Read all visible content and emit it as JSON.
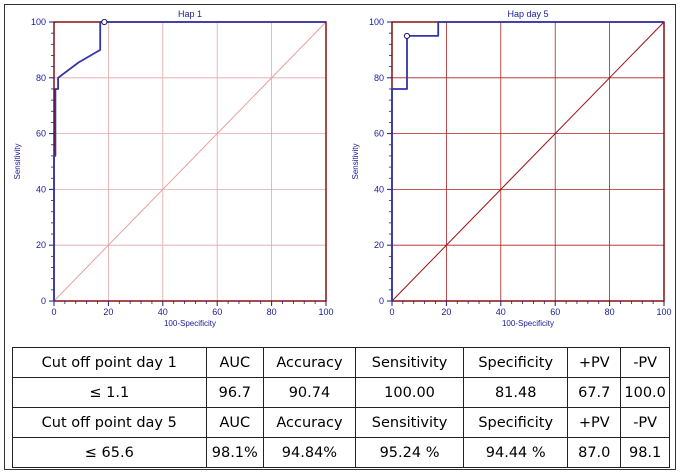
{
  "chart_data": [
    {
      "type": "line",
      "title": "Hap 1",
      "xlabel": "100-Specificity",
      "ylabel": "Sensitivity",
      "xlim": [
        0,
        100
      ],
      "ylim": [
        0,
        100
      ],
      "xticks": [
        0,
        20,
        40,
        60,
        80,
        100
      ],
      "yticks": [
        0,
        20,
        40,
        60,
        80,
        100
      ],
      "grid": true,
      "roc_curve": {
        "x": [
          0,
          0,
          0.5,
          0.5,
          1.5,
          1.5,
          9,
          17,
          17,
          18.5,
          100
        ],
        "y": [
          0,
          52,
          52,
          76,
          76,
          80,
          85.5,
          90,
          100,
          100,
          100
        ]
      },
      "diagonal": {
        "x": [
          0,
          100
        ],
        "y": [
          0,
          100
        ]
      },
      "cutoff_point": {
        "x": 18.5,
        "y": 100
      },
      "colors": {
        "curve": "#3333aa",
        "diagonal": "#e8a0a0",
        "grid": "#e0a8a8",
        "frame": "#800000",
        "text": "#1a1a99"
      }
    },
    {
      "type": "line",
      "title": "Hap day 5",
      "xlabel": "100-Specificity",
      "ylabel": "Sensitivity",
      "xlim": [
        0,
        100
      ],
      "ylim": [
        0,
        100
      ],
      "xticks": [
        0,
        20,
        40,
        60,
        80,
        100
      ],
      "yticks": [
        0,
        20,
        40,
        60,
        80,
        100
      ],
      "grid": true,
      "roc_curve": {
        "x": [
          0,
          0,
          5.5,
          5.5,
          17,
          17,
          100
        ],
        "y": [
          0,
          76,
          76,
          95,
          95,
          100,
          100
        ]
      },
      "diagonal": {
        "x": [
          0,
          100
        ],
        "y": [
          0,
          100
        ]
      },
      "cutoff_point": {
        "x": 5.5,
        "y": 95
      },
      "colors": {
        "curve": "#3333aa",
        "diagonal": "#a01010",
        "grid": "#b02020",
        "frame": "#800000",
        "text": "#1a1a99"
      }
    }
  ],
  "table": {
    "rows": [
      [
        "Cut off point day 1",
        "AUC",
        "Accuracy",
        "Sensitivity",
        "Specificity",
        "+PV",
        "-PV"
      ],
      [
        "≤ 1.1",
        "96.7",
        "90.74",
        "100.00",
        "81.48",
        "67.7",
        "100.0"
      ],
      [
        "Cut off point day 5",
        "AUC",
        "Accuracy",
        "Sensitivity",
        "Specificity",
        "+PV",
        "-PV"
      ],
      [
        "≤ 65.6",
        "98.1%",
        "94.84%",
        "95.24 %",
        "94.44 %",
        "87.0",
        "98.1"
      ]
    ]
  }
}
